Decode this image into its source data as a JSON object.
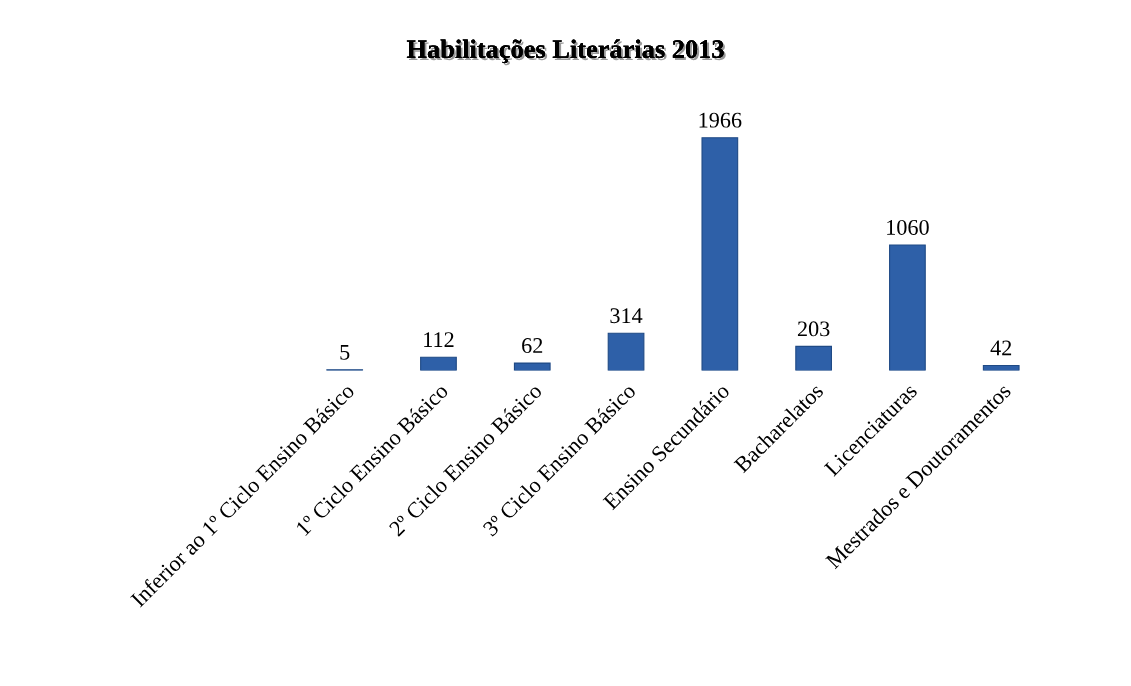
{
  "chart_data": {
    "type": "bar",
    "title": "Habilitações Literárias 2013",
    "categories": [
      "Inferior ao 1º Ciclo Ensino Básico",
      "1º Ciclo Ensino Básico",
      "2º Ciclo Ensino Básico",
      "3º Ciclo Ensino Básico",
      "Ensino Secundário",
      "Bacharelatos",
      "Licenciaturas",
      "Mestrados e Doutoramentos"
    ],
    "values": [
      5,
      112,
      62,
      314,
      1966,
      203,
      1060,
      42
    ],
    "color": "#2e60a8",
    "data_labels": true,
    "grid": false,
    "legend": false
  }
}
